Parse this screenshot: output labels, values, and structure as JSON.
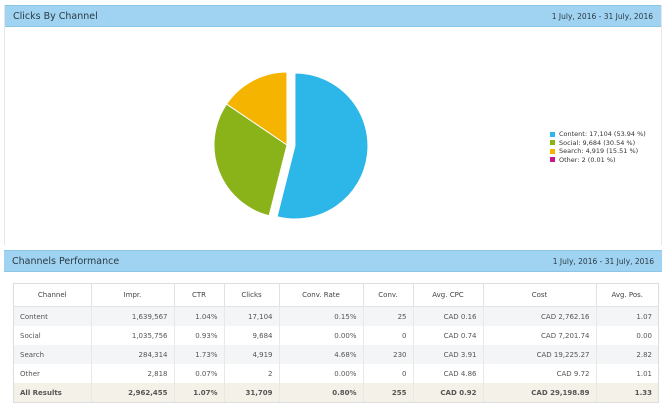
{
  "chart_panel": {
    "title": "Clicks By Channel",
    "date_range": "1 July, 2016 - 31 July, 2016"
  },
  "chart_data": {
    "type": "pie",
    "title": "Clicks By Channel",
    "slices": [
      {
        "name": "Content",
        "value": 17104,
        "percent": 53.94,
        "color": "#2db6e8",
        "label": "Content: 17,104 (53.94 %)"
      },
      {
        "name": "Social",
        "value": 9684,
        "percent": 30.54,
        "color": "#8ab31a",
        "label": "Social: 9,684 (30.54 %)"
      },
      {
        "name": "Search",
        "value": 4919,
        "percent": 15.51,
        "color": "#f4b400",
        "label": "Search: 4,919 (15.51 %)"
      },
      {
        "name": "Other",
        "value": 2,
        "percent": 0.01,
        "color": "#c5168c",
        "label": "Other: 2 (0.01 %)"
      }
    ],
    "exploded": "Content",
    "legend": "right"
  },
  "perf_panel": {
    "title": "Channels Performance",
    "date_range": "1 July, 2016 - 31 July, 2016"
  },
  "table": {
    "columns": [
      "Channel",
      "Impr.",
      "CTR",
      "Clicks",
      "Conv. Rate",
      "Conv.",
      "Avg. CPC",
      "Cost",
      "Avg. Pos."
    ],
    "rows": [
      [
        "Content",
        "1,639,567",
        "1.04%",
        "17,104",
        "0.15%",
        "25",
        "CAD 0.16",
        "CAD 2,762.16",
        "1.07"
      ],
      [
        "Social",
        "1,035,756",
        "0.93%",
        "9,684",
        "0.00%",
        "0",
        "CAD 0.74",
        "CAD 7,201.74",
        "0.00"
      ],
      [
        "Search",
        "284,314",
        "1.73%",
        "4,919",
        "4.68%",
        "230",
        "CAD 3.91",
        "CAD 19,225.27",
        "2.82"
      ],
      [
        "Other",
        "2,818",
        "0.07%",
        "2",
        "0.00%",
        "0",
        "CAD 4.86",
        "CAD 9.72",
        "1.01"
      ]
    ],
    "total": [
      "All Results",
      "2,962,455",
      "1.07%",
      "31,709",
      "0.80%",
      "255",
      "CAD 0.92",
      "CAD 29,198.89",
      "1.33"
    ]
  }
}
